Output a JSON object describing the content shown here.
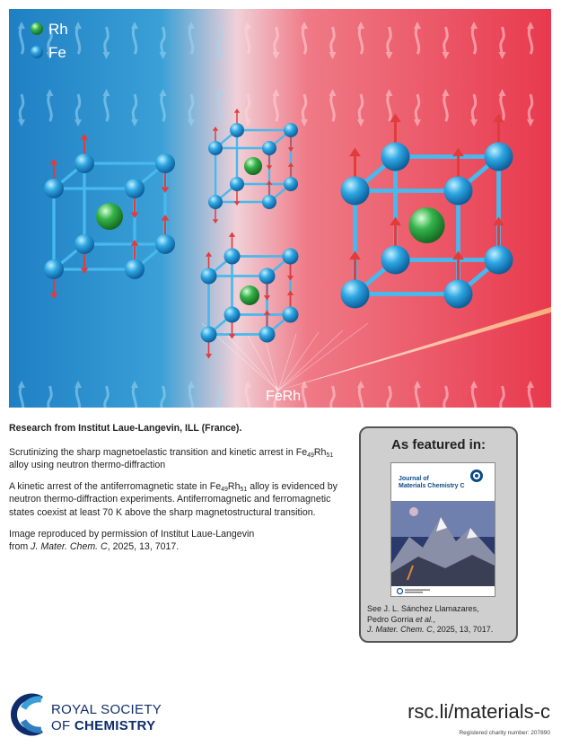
{
  "hero": {
    "legend": [
      {
        "label": "Rh",
        "color": "#2fae4a"
      },
      {
        "label": "Fe",
        "color": "#1f8fd4"
      }
    ],
    "alloy_label": "FeRh",
    "colors": {
      "left": "#2a8ccf",
      "mid": "#e8c8d0",
      "right": "#e8394d",
      "bond": "#41b8ee",
      "spin": "#e23b3b"
    }
  },
  "text": {
    "heading": "Research from Institut Laue-Langevin, ILL (France).",
    "title_part1": "Scrutinizing the sharp magnetoelastic transition and kinetic arrest in Fe",
    "title_sub1": "49",
    "title_part2": "Rh",
    "title_sub2": "51",
    "title_part3": " alloy using neutron thermo-diffraction",
    "abstract_part1": "A kinetic arrest of the antiferromagnetic state in Fe",
    "abstract_sub1": "49",
    "abstract_part2": "Rh",
    "abstract_sub2": "51",
    "abstract_part3": " alloy is evidenced by neutron thermo-diffraction experiments. Antiferromagnetic and ferromagnetic states coexist at least 70 K above the sharp magnetostructural transition.",
    "credit_line1": "Image reproduced by permission of Institut Laue-Langevin",
    "credit_from": "from ",
    "credit_journal": "J. Mater. Chem. C",
    "credit_rest": ", 2025, 13, 7017."
  },
  "featured": {
    "title": "As featured in:",
    "cover_journal_line1": "Journal of",
    "cover_journal_line2": "Materials Chemistry C",
    "ref_line1": "See J. L. Sánchez Llamazares,",
    "ref_line2_a": "Pedro Gorria ",
    "ref_line2_b": "et al.",
    "ref_line2_c": ",",
    "ref_journal": "J. Mater. Chem. C",
    "ref_rest": ", 2025, 13, 7017."
  },
  "footer": {
    "logo_line1": "ROYAL SOCIETY",
    "logo_line2_a": "OF ",
    "logo_line2_b": "CHEMISTRY",
    "url": "rsc.li/materials-c",
    "charity": "Registered charity number: 207890"
  }
}
